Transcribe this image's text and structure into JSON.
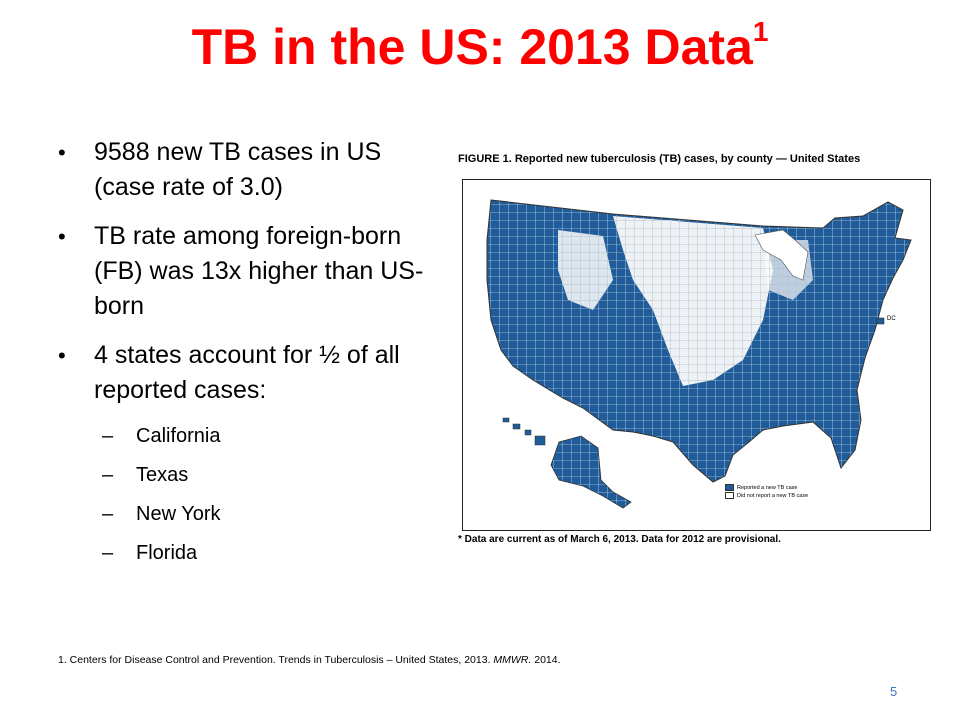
{
  "title": {
    "text": "TB in the US: 2013 Data",
    "superscript": "1"
  },
  "bullets": [
    {
      "level": 1,
      "text": "9588 new TB cases in US (case rate of 3.0)"
    },
    {
      "level": 1,
      "text": "TB rate among foreign-born (FB) was 13x higher than US-born"
    },
    {
      "level": 1,
      "text": "4 states account for ½ of all reported cases:"
    },
    {
      "level": 2,
      "text": "California"
    },
    {
      "level": 2,
      "text": "Texas"
    },
    {
      "level": 2,
      "text": "New York"
    },
    {
      "level": 2,
      "text": "Florida"
    }
  ],
  "figure": {
    "caption": "FIGURE 1. Reported new tuberculosis (TB) cases, by county — United States",
    "note": "* Data are current as of March 6, 2013. Data for 2012 are provisional.",
    "dc_label": "DC",
    "legend": [
      {
        "label": "Reported a new TB case",
        "color": "#1f5c99"
      },
      {
        "label": "Did not report a new TB case",
        "color": "#ffffff"
      }
    ]
  },
  "footnote": {
    "prefix": "1. Centers for Disease Control and Prevention. Trends in Tuberculosis – United States, 2013. ",
    "italic": "MMWR.",
    "suffix": " 2014."
  },
  "page_number": "5",
  "colors": {
    "title": "#ff0000",
    "map_fill": "#1f5c99",
    "page_number": "#4472c4"
  }
}
